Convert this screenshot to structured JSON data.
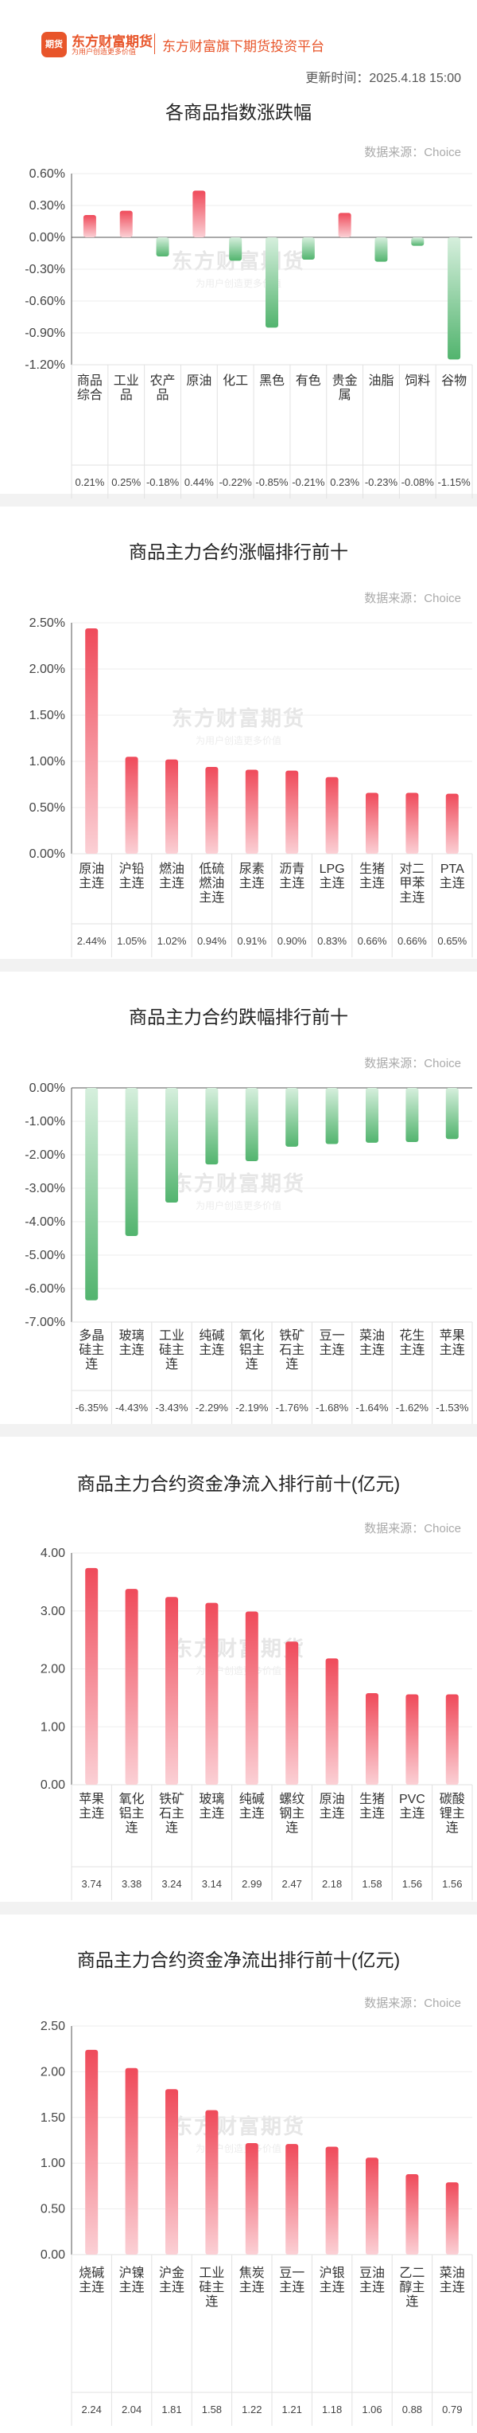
{
  "header": {
    "logo_mark": "期货",
    "logo_name": "东方财富期货",
    "logo_slogan": "为用户创造更多价值",
    "platform": "东方财富旗下期货投资平台",
    "update_time": "更新时间：2025.4.18 15:00"
  },
  "watermark": {
    "title": "东方财富期货",
    "slogan": "为用户创造更多价值"
  },
  "colors": {
    "up": "#ef4a5a",
    "down": "#52b46e",
    "axis": "#555555",
    "grid": "#eeeeee"
  },
  "chart_data": [
    {
      "type": "bar",
      "title": "各商品指数涨跌幅",
      "source": "数据来源：Choice",
      "categories": [
        "商品综合",
        "工业品",
        "农产品",
        "原油",
        "化工",
        "黑色",
        "有色",
        "贵金属",
        "油脂",
        "饲料",
        "谷物"
      ],
      "values": [
        0.21,
        0.25,
        -0.18,
        0.44,
        -0.22,
        -0.85,
        -0.21,
        0.23,
        -0.23,
        -0.08,
        -1.15
      ],
      "value_labels": [
        "0.21%",
        "0.25%",
        "-0.18%",
        "0.44%",
        "-0.22%",
        "-0.85%",
        "-0.21%",
        "0.23%",
        "-0.23%",
        "-0.08%",
        "-1.15%"
      ],
      "yticks": [
        "0.60%",
        "0.30%",
        "0.00%",
        "-0.30%",
        "-0.60%",
        "-0.90%",
        "-1.20%"
      ],
      "ylim": [
        -1.2,
        0.6
      ]
    },
    {
      "type": "bar",
      "title": "商品主力合约涨幅排行前十",
      "source": "数据来源：Choice",
      "categories": [
        "原油主连",
        "沪铅主连",
        "燃油主连",
        "低硫燃油主连",
        "尿素主连",
        "沥青主连",
        "LPG主连",
        "生猪主连",
        "对二甲苯主连",
        "PTA主连"
      ],
      "values": [
        2.44,
        1.05,
        1.02,
        0.94,
        0.91,
        0.9,
        0.83,
        0.66,
        0.66,
        0.65
      ],
      "value_labels": [
        "2.44%",
        "1.05%",
        "1.02%",
        "0.94%",
        "0.91%",
        "0.90%",
        "0.83%",
        "0.66%",
        "0.66%",
        "0.65%"
      ],
      "yticks": [
        "2.50%",
        "2.00%",
        "1.50%",
        "1.00%",
        "0.50%",
        "0.00%"
      ],
      "ylim": [
        0,
        2.5
      ]
    },
    {
      "type": "bar",
      "title": "商品主力合约跌幅排行前十",
      "source": "数据来源：Choice",
      "categories": [
        "多晶硅主连",
        "玻璃主连",
        "工业硅主连",
        "纯碱主连",
        "氧化铝主连",
        "铁矿石主连",
        "豆一主连",
        "菜油主连",
        "花生主连",
        "苹果主连"
      ],
      "values": [
        -6.35,
        -4.43,
        -3.43,
        -2.29,
        -2.19,
        -1.76,
        -1.68,
        -1.64,
        -1.62,
        -1.53
      ],
      "value_labels": [
        "-6.35%",
        "-4.43%",
        "-3.43%",
        "-2.29%",
        "-2.19%",
        "-1.76%",
        "-1.68%",
        "-1.64%",
        "-1.62%",
        "-1.53%"
      ],
      "yticks": [
        "0.00%",
        "-1.00%",
        "-2.00%",
        "-3.00%",
        "-4.00%",
        "-5.00%",
        "-6.00%",
        "-7.00%"
      ],
      "ylim": [
        -7,
        0
      ]
    },
    {
      "type": "bar",
      "title": "商品主力合约资金净流入排行前十(亿元)",
      "source": "数据来源：Choice",
      "categories": [
        "苹果主连",
        "氧化铝主连",
        "铁矿石主连",
        "玻璃主连",
        "纯碱主连",
        "螺纹钢主连",
        "原油主连",
        "生猪主连",
        "PVC主连",
        "碳酸锂主连"
      ],
      "values": [
        3.74,
        3.38,
        3.24,
        3.14,
        2.99,
        2.47,
        2.18,
        1.58,
        1.56,
        1.56
      ],
      "value_labels": [
        "3.74",
        "3.38",
        "3.24",
        "3.14",
        "2.99",
        "2.47",
        "2.18",
        "1.58",
        "1.56",
        "1.56"
      ],
      "yticks": [
        "4.00",
        "3.00",
        "2.00",
        "1.00",
        "0.00"
      ],
      "ylim": [
        0,
        4
      ]
    },
    {
      "type": "bar",
      "title": "商品主力合约资金净流出排行前十(亿元)",
      "source": "数据来源：Choice",
      "categories": [
        "烧碱主连",
        "沪镍主连",
        "沪金主连",
        "工业硅主连",
        "焦炭主连",
        "豆一主连",
        "沪银主连",
        "豆油主连",
        "乙二醇主连",
        "菜油主连"
      ],
      "values": [
        2.24,
        2.04,
        1.81,
        1.58,
        1.22,
        1.21,
        1.18,
        1.06,
        0.88,
        0.79
      ],
      "value_labels": [
        "2.24",
        "2.04",
        "1.81",
        "1.58",
        "1.22",
        "1.21",
        "1.18",
        "1.06",
        "0.88",
        "0.79"
      ],
      "yticks": [
        "2.50",
        "2.00",
        "1.50",
        "1.00",
        "0.50",
        "0.00"
      ],
      "ylim": [
        0,
        2.5
      ]
    }
  ]
}
